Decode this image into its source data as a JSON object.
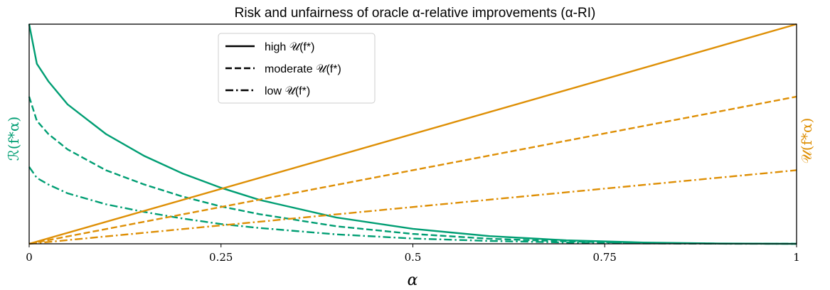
{
  "chart_data": {
    "type": "line",
    "title": "Risk and unfairness of oracle α-relative improvements (α-RI)",
    "xlabel": "α",
    "ylabel_left": "ℛ(f*α)",
    "ylabel_right": "𝒰(f*α)",
    "xlim": [
      0,
      1
    ],
    "ylim_left": [
      0,
      1
    ],
    "ylim_right": [
      0,
      1
    ],
    "x_ticks": [
      0,
      0.25,
      0.5,
      0.75,
      1
    ],
    "x_tick_labels": [
      "0",
      "0.25",
      "0.5",
      "0.75",
      "1"
    ],
    "y_ticks_left": [],
    "y_ticks_right": [],
    "grid": false,
    "legend_position": "top-left",
    "legend": [
      {
        "label": "high 𝒰(f*)",
        "dash": "solid"
      },
      {
        "label": "moderate 𝒰(f*)",
        "dash": "dashed"
      },
      {
        "label": "low 𝒰(f*)",
        "dash": "dashdot"
      }
    ],
    "colors": {
      "risk": "#009e73",
      "unfairness": "#de8f05"
    },
    "series": [
      {
        "axis": "left",
        "color": "#009e73",
        "dash": "solid",
        "points": [
          [
            0,
            1.0
          ],
          [
            0.01,
            0.82
          ],
          [
            0.025,
            0.74
          ],
          [
            0.05,
            0.635
          ],
          [
            0.1,
            0.5
          ],
          [
            0.15,
            0.4
          ],
          [
            0.2,
            0.32
          ],
          [
            0.25,
            0.255
          ],
          [
            0.3,
            0.2
          ],
          [
            0.4,
            0.12
          ],
          [
            0.5,
            0.068
          ],
          [
            0.6,
            0.035
          ],
          [
            0.7,
            0.016
          ],
          [
            0.8,
            0.006
          ],
          [
            0.9,
            0.0015
          ],
          [
            1.0,
            0.0
          ]
        ]
      },
      {
        "axis": "left",
        "color": "#009e73",
        "dash": "dashed",
        "points": [
          [
            0,
            0.67
          ],
          [
            0.01,
            0.56
          ],
          [
            0.025,
            0.5
          ],
          [
            0.05,
            0.43
          ],
          [
            0.1,
            0.335
          ],
          [
            0.15,
            0.27
          ],
          [
            0.2,
            0.215
          ],
          [
            0.25,
            0.17
          ],
          [
            0.3,
            0.135
          ],
          [
            0.4,
            0.08
          ],
          [
            0.5,
            0.045
          ],
          [
            0.6,
            0.023
          ],
          [
            0.7,
            0.011
          ],
          [
            0.8,
            0.004
          ],
          [
            0.9,
            0.001
          ],
          [
            1.0,
            0.0
          ]
        ]
      },
      {
        "axis": "left",
        "color": "#009e73",
        "dash": "dashdot",
        "points": [
          [
            0,
            0.35
          ],
          [
            0.01,
            0.3
          ],
          [
            0.025,
            0.27
          ],
          [
            0.05,
            0.23
          ],
          [
            0.1,
            0.18
          ],
          [
            0.15,
            0.145
          ],
          [
            0.2,
            0.115
          ],
          [
            0.25,
            0.09
          ],
          [
            0.3,
            0.072
          ],
          [
            0.4,
            0.043
          ],
          [
            0.5,
            0.024
          ],
          [
            0.6,
            0.013
          ],
          [
            0.7,
            0.006
          ],
          [
            0.8,
            0.002
          ],
          [
            0.9,
            0.0005
          ],
          [
            1.0,
            0.0
          ]
        ]
      },
      {
        "axis": "right",
        "color": "#de8f05",
        "dash": "solid",
        "points": [
          [
            0,
            0.0
          ],
          [
            1,
            1.0
          ]
        ]
      },
      {
        "axis": "right",
        "color": "#de8f05",
        "dash": "dashed",
        "points": [
          [
            0,
            0.0
          ],
          [
            1,
            0.67
          ]
        ]
      },
      {
        "axis": "right",
        "color": "#de8f05",
        "dash": "dashdot",
        "points": [
          [
            0,
            0.0
          ],
          [
            1,
            0.335
          ]
        ]
      }
    ]
  }
}
